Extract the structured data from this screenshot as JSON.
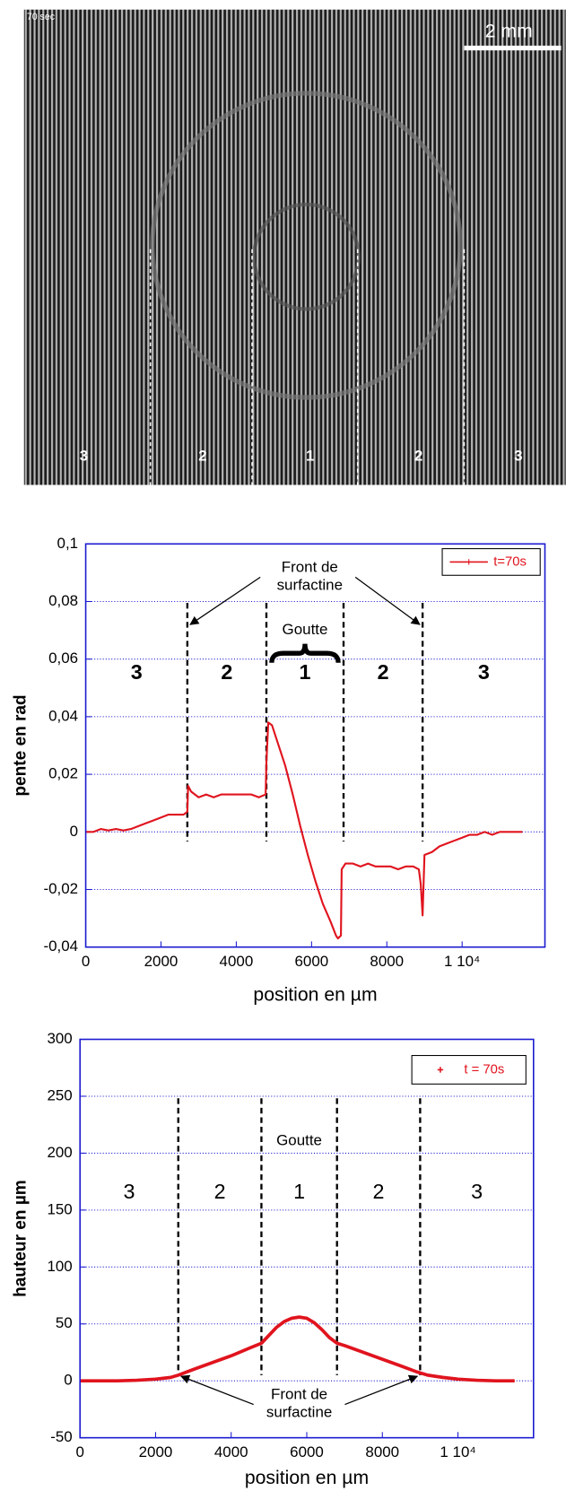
{
  "image": {
    "timestamp": "70 sec",
    "scale_bar": "2 mm",
    "zone_labels": [
      "3",
      "2",
      "1",
      "2",
      "3"
    ]
  },
  "chart_data": [
    {
      "type": "line",
      "xlabel": "position en µm",
      "ylabel": "pente en rad",
      "xlim": [
        0,
        12200
      ],
      "ylim": [
        -0.04,
        0.1
      ],
      "xticks": [
        0,
        2000,
        4000,
        6000,
        8000,
        {
          "value": 10000,
          "label": "1 10⁴"
        }
      ],
      "yticks": [
        {
          "value": 0.1,
          "label": "0,1"
        },
        {
          "value": 0.08,
          "label": "0,08"
        },
        {
          "value": 0.06,
          "label": "0,06"
        },
        {
          "value": 0.04,
          "label": "0,04"
        },
        {
          "value": 0.02,
          "label": "0,02"
        },
        0,
        {
          "value": -0.02,
          "label": "-0,02"
        },
        {
          "value": -0.04,
          "label": "-0,04"
        }
      ],
      "grid": true,
      "legend": "upper right",
      "boundaries": [
        2700,
        4800,
        6850,
        8950
      ],
      "annotations": {
        "front": [
          "Front de",
          "surfactine"
        ],
        "drop": "Goutte",
        "zones": [
          "3",
          "2",
          "1",
          "2",
          "3"
        ]
      },
      "series": [
        {
          "name": "t=70s",
          "color": "#e0141e",
          "x": [
            0,
            200,
            400,
            600,
            800,
            1000,
            1200,
            1400,
            1600,
            1800,
            2000,
            2200,
            2400,
            2600,
            2700,
            2720,
            2800,
            3000,
            3200,
            3400,
            3600,
            3800,
            4000,
            4200,
            4400,
            4600,
            4780,
            4800,
            4850,
            4950,
            5100,
            5300,
            5500,
            5700,
            5900,
            6100,
            6300,
            6500,
            6650,
            6700,
            6780,
            6800,
            6900,
            7100,
            7300,
            7500,
            7700,
            7900,
            8100,
            8300,
            8500,
            8700,
            8850,
            8900,
            8950,
            9000,
            9200,
            9400,
            9600,
            9800,
            10000,
            10200,
            10400,
            10600,
            10800,
            11000,
            11200,
            11400,
            11600
          ],
          "values": [
            0,
            0,
            0.001,
            0.0005,
            0.001,
            0.0005,
            0.001,
            0.002,
            0.003,
            0.004,
            0.005,
            0.006,
            0.006,
            0.006,
            0.007,
            0.016,
            0.014,
            0.012,
            0.013,
            0.012,
            0.013,
            0.013,
            0.013,
            0.013,
            0.013,
            0.012,
            0.013,
            0.024,
            0.038,
            0.037,
            0.031,
            0.023,
            0.013,
            0.002,
            -0.008,
            -0.017,
            -0.025,
            -0.031,
            -0.036,
            -0.037,
            -0.036,
            -0.013,
            -0.011,
            -0.011,
            -0.012,
            -0.011,
            -0.012,
            -0.012,
            -0.012,
            -0.013,
            -0.012,
            -0.012,
            -0.013,
            -0.018,
            -0.029,
            -0.008,
            -0.007,
            -0.005,
            -0.004,
            -0.003,
            -0.002,
            -0.001,
            -0.001,
            0,
            -0.001,
            0,
            0,
            0,
            0
          ]
        }
      ]
    },
    {
      "type": "line",
      "xlabel": "position en µm",
      "ylabel": "hauteur en µm",
      "xlim": [
        0,
        12000
      ],
      "ylim": [
        -50,
        300
      ],
      "xticks": [
        0,
        2000,
        4000,
        6000,
        8000,
        {
          "value": 10000,
          "label": "1 10⁴"
        }
      ],
      "yticks": [
        -50,
        0,
        50,
        100,
        150,
        200,
        250,
        300
      ],
      "grid": true,
      "legend": "upper right",
      "boundaries": [
        2600,
        4800,
        6800,
        9000
      ],
      "annotations": {
        "front": [
          "Front de",
          "surfactine"
        ],
        "drop": "Goutte",
        "zones": [
          "3",
          "2",
          "1",
          "2",
          "3"
        ]
      },
      "series": [
        {
          "name": "t = 70s",
          "color": "#e0141e",
          "x": [
            0,
            500,
            1000,
            1500,
            2000,
            2400,
            2600,
            3000,
            3500,
            4000,
            4500,
            4800,
            5000,
            5200,
            5400,
            5600,
            5800,
            6000,
            6200,
            6400,
            6600,
            6800,
            7000,
            7500,
            8000,
            8500,
            8900,
            9200,
            9600,
            10000,
            10500,
            11000,
            11500
          ],
          "values": [
            0,
            0,
            0,
            0.5,
            1.5,
            3,
            5,
            10,
            16,
            22,
            29,
            33,
            40,
            47,
            52,
            55,
            56,
            55,
            51,
            45,
            38,
            33,
            31,
            25,
            19,
            13,
            8,
            5,
            3,
            1.5,
            0.5,
            0,
            0
          ]
        }
      ]
    }
  ]
}
